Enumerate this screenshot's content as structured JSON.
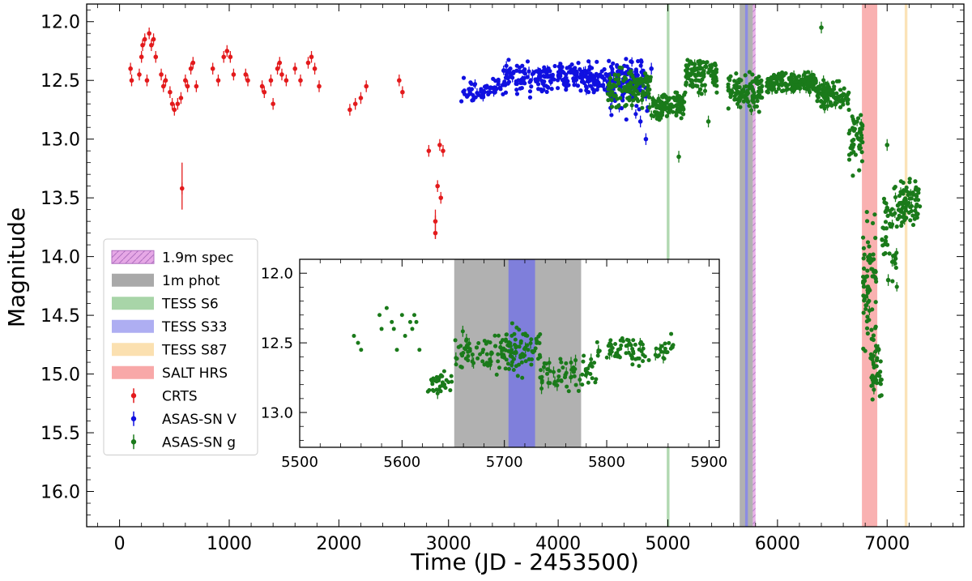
{
  "chart_data": {
    "type": "scatter",
    "title": "",
    "xlabel": "Time (JD - 2453500)",
    "ylabel": "Magnitude",
    "xlim": [
      -300,
      7700
    ],
    "ylim": [
      16.3,
      11.85
    ],
    "y_inverted": true,
    "x_ticks": [
      0,
      1000,
      2000,
      3000,
      4000,
      5000,
      6000,
      7000
    ],
    "x_tick_labels": [
      "0",
      "1000",
      "2000",
      "3000",
      "4000",
      "5000",
      "6000",
      "7000"
    ],
    "y_ticks": [
      12.0,
      12.5,
      13.0,
      13.5,
      14.0,
      14.5,
      15.0,
      15.5,
      16.0
    ],
    "y_tick_labels": [
      "12.0",
      "12.5",
      "13.0",
      "13.5",
      "14.0",
      "14.5",
      "15.0",
      "15.5",
      "16.0"
    ],
    "legend_position": "lower-left",
    "legend": [
      {
        "label": "1.9m spec",
        "kind": "hatch",
        "color": "#e6a8e6",
        "edge": "#b070c0"
      },
      {
        "label": "1m phot",
        "kind": "patch",
        "color": "#a9a9a9"
      },
      {
        "label": "TESS S6",
        "kind": "patch",
        "color": "#a8d5a8"
      },
      {
        "label": "TESS S33",
        "kind": "patch",
        "color": "#aeaef2"
      },
      {
        "label": "TESS S87",
        "kind": "patch",
        "color": "#fbe0b0"
      },
      {
        "label": "SALT HRS",
        "kind": "patch",
        "color": "#f8a8a8"
      },
      {
        "label": "CRTS",
        "kind": "marker",
        "color": "#e31a1c"
      },
      {
        "label": "ASAS-SN V",
        "kind": "marker",
        "color": "#1010e0"
      },
      {
        "label": "ASAS-SN g",
        "kind": "marker",
        "color": "#1a7a1a"
      }
    ],
    "spans": [
      {
        "name": "TESS S6",
        "x0": 4990,
        "x1": 5015,
        "color": "#a8d5a8"
      },
      {
        "name": "1m phot",
        "x0": 5655,
        "x1": 5775,
        "color": "#a9a9a9"
      },
      {
        "name": "TESS S33",
        "x0": 5705,
        "x1": 5730,
        "color": "#8888e8"
      },
      {
        "name": "1.9m spec",
        "x0": 5775,
        "x1": 5800,
        "color": "#e6a8e6"
      },
      {
        "name": "SALT HRS",
        "x0": 6770,
        "x1": 6910,
        "color": "#f8a8a8"
      },
      {
        "name": "TESS S87",
        "x0": 7160,
        "x1": 7185,
        "color": "#fbe0b0"
      }
    ],
    "series": [
      {
        "name": "CRTS",
        "color": "#e31a1c",
        "points": [
          [
            100,
            12.4
          ],
          [
            110,
            12.5
          ],
          [
            180,
            12.45
          ],
          [
            200,
            12.3
          ],
          [
            210,
            12.2
          ],
          [
            230,
            12.15
          ],
          [
            250,
            12.5
          ],
          [
            270,
            12.1
          ],
          [
            290,
            12.2
          ],
          [
            310,
            12.15
          ],
          [
            330,
            12.3
          ],
          [
            380,
            12.45
          ],
          [
            400,
            12.55
          ],
          [
            420,
            12.5
          ],
          [
            460,
            12.6
          ],
          [
            480,
            12.7
          ],
          [
            500,
            12.75
          ],
          [
            530,
            12.7
          ],
          [
            560,
            12.65
          ],
          [
            570,
            13.42
          ],
          [
            600,
            12.5
          ],
          [
            620,
            12.55
          ],
          [
            650,
            12.4
          ],
          [
            670,
            12.35
          ],
          [
            700,
            12.55
          ],
          [
            850,
            12.4
          ],
          [
            900,
            12.5
          ],
          [
            950,
            12.3
          ],
          [
            980,
            12.25
          ],
          [
            1010,
            12.3
          ],
          [
            1040,
            12.45
          ],
          [
            1150,
            12.45
          ],
          [
            1170,
            12.5
          ],
          [
            1300,
            12.55
          ],
          [
            1320,
            12.6
          ],
          [
            1380,
            12.5
          ],
          [
            1400,
            12.7
          ],
          [
            1440,
            12.4
          ],
          [
            1460,
            12.35
          ],
          [
            1480,
            12.45
          ],
          [
            1520,
            12.5
          ],
          [
            1600,
            12.4
          ],
          [
            1650,
            12.5
          ],
          [
            1720,
            12.35
          ],
          [
            1750,
            12.3
          ],
          [
            1780,
            12.4
          ],
          [
            1820,
            12.55
          ],
          [
            2100,
            12.75
          ],
          [
            2150,
            12.7
          ],
          [
            2200,
            12.65
          ],
          [
            2250,
            12.55
          ],
          [
            2550,
            12.5
          ],
          [
            2580,
            12.6
          ],
          [
            2820,
            13.1
          ],
          [
            2880,
            13.7
          ],
          [
            2900,
            13.4
          ],
          [
            2920,
            13.05
          ],
          [
            2930,
            13.5
          ],
          [
            2880,
            13.8
          ],
          [
            2950,
            13.1
          ]
        ],
        "error_bars": [
          {
            "x": 570,
            "y0": 13.2,
            "y1": 13.6
          },
          {
            "x": 2880,
            "y0": 13.6,
            "y1": 13.85
          }
        ]
      },
      {
        "name": "ASAS-SN V",
        "color": "#1010e0",
        "segments": [
          {
            "x_start": 3100,
            "x_end": 3500,
            "y_mid": 12.58,
            "y_spread": 0.1,
            "count": 60
          },
          {
            "x_start": 3500,
            "x_end": 4350,
            "y_mid": 12.48,
            "y_spread": 0.14,
            "count": 220
          },
          {
            "x_start": 4350,
            "x_end": 4780,
            "y_mid": 12.48,
            "y_spread": 0.15,
            "count": 120
          },
          {
            "x_start": 4450,
            "x_end": 4820,
            "y_mid": 12.6,
            "y_spread": 0.2,
            "count": 60
          }
        ],
        "points": [
          [
            4750,
            12.85
          ],
          [
            4850,
            12.4
          ],
          [
            4800,
            13.0
          ]
        ]
      },
      {
        "name": "ASAS-SN g",
        "color": "#1a7a1a",
        "segments": [
          {
            "x_start": 4450,
            "x_end": 4850,
            "y_mid": 12.55,
            "y_spread": 0.18,
            "count": 120
          },
          {
            "x_start": 4850,
            "x_end": 5150,
            "y_mid": 12.72,
            "y_spread": 0.12,
            "count": 110
          },
          {
            "x_start": 5150,
            "x_end": 5450,
            "y_mid": 12.45,
            "y_spread": 0.14,
            "count": 100
          },
          {
            "x_start": 5550,
            "x_end": 5870,
            "y_mid": 12.6,
            "y_spread": 0.15,
            "count": 110
          },
          {
            "x_start": 5900,
            "x_end": 6350,
            "y_mid": 12.52,
            "y_spread": 0.1,
            "count": 160
          },
          {
            "x_start": 6350,
            "x_end": 6650,
            "y_mid": 12.62,
            "y_spread": 0.12,
            "count": 100
          },
          {
            "x_start": 6650,
            "x_end": 6780,
            "y_mid": 13.0,
            "y_spread": 0.25,
            "count": 50
          },
          {
            "x_start": 6780,
            "x_end": 6900,
            "y_mid": 14.2,
            "y_spread": 0.6,
            "count": 70
          },
          {
            "x_start": 6850,
            "x_end": 6950,
            "y_mid": 15.0,
            "y_spread": 0.35,
            "count": 40
          },
          {
            "x_start": 6950,
            "x_end": 7100,
            "y_mid": 13.8,
            "y_spread": 0.4,
            "count": 50
          },
          {
            "x_start": 7100,
            "x_end": 7300,
            "y_mid": 13.55,
            "y_spread": 0.2,
            "count": 80
          }
        ],
        "points": [
          [
            5100,
            13.15
          ],
          [
            5370,
            12.85
          ],
          [
            6400,
            12.05
          ],
          [
            7000,
            13.05
          ],
          [
            7010,
            14.2
          ]
        ]
      }
    ],
    "inset": {
      "xlim": [
        5500,
        5910
      ],
      "ylim": [
        13.25,
        11.9
      ],
      "x_ticks": [
        5500,
        5600,
        5700,
        5800,
        5900
      ],
      "x_tick_labels": [
        "5500",
        "5600",
        "5700",
        "5800",
        "5900"
      ],
      "y_ticks": [
        12.0,
        12.5,
        13.0
      ],
      "y_tick_labels": [
        "12.0",
        "12.5",
        "13.0"
      ],
      "spans": [
        {
          "name": "1m phot",
          "x0": 5651,
          "x1": 5775,
          "color": "#a9a9a9"
        },
        {
          "name": "TESS S33",
          "x0": 5704,
          "x1": 5730,
          "color": "#7a7ae0"
        }
      ],
      "series": {
        "name": "ASAS-SN g",
        "color": "#1a7a1a",
        "early_points": [
          [
            5553,
            12.45
          ],
          [
            5557,
            12.5
          ],
          [
            5560,
            12.55
          ],
          [
            5578,
            12.3
          ],
          [
            5580,
            12.4
          ],
          [
            5585,
            12.25
          ],
          [
            5590,
            12.35
          ],
          [
            5592,
            12.4
          ],
          [
            5595,
            12.55
          ],
          [
            5600,
            12.3
          ],
          [
            5603,
            12.45
          ],
          [
            5608,
            12.35
          ],
          [
            5610,
            12.4
          ],
          [
            5612,
            12.3
          ],
          [
            5614,
            12.35
          ],
          [
            5617,
            12.55
          ]
        ],
        "segments": [
          {
            "x_start": 5625,
            "x_end": 5650,
            "y_mid": 12.78,
            "y_spread": 0.12,
            "count": 35
          },
          {
            "x_start": 5650,
            "x_end": 5700,
            "y_mid": 12.55,
            "y_spread": 0.14,
            "count": 70
          },
          {
            "x_start": 5700,
            "x_end": 5735,
            "y_mid": 12.55,
            "y_spread": 0.18,
            "count": 80
          },
          {
            "x_start": 5735,
            "x_end": 5790,
            "y_mid": 12.72,
            "y_spread": 0.12,
            "count": 70
          },
          {
            "x_start": 5790,
            "x_end": 5865,
            "y_mid": 12.55,
            "y_spread": 0.12,
            "count": 80
          }
        ]
      }
    }
  }
}
